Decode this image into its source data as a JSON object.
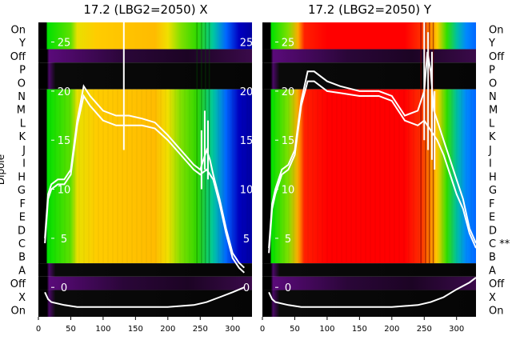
{
  "chart_data": [
    {
      "type": "heatmap",
      "panel": "left",
      "title": "17.2 (LBG2=2050) X",
      "ylabel": "Dipole",
      "xlim": [
        0,
        330
      ],
      "x_ticks": [
        0,
        50,
        100,
        150,
        200,
        250,
        300
      ],
      "y_categories_top_to_bottom": [
        "On",
        "Y",
        "Off",
        "P",
        "O",
        "N",
        "M",
        "L",
        "K",
        "J",
        "I",
        "H",
        "G",
        "F",
        "E",
        "D",
        "C",
        "B",
        "A",
        "Off",
        "X",
        "On"
      ],
      "overlay_ticks": [
        25,
        20,
        15,
        10,
        5,
        0
      ],
      "overlay_ylim": [
        -3,
        27
      ],
      "heat_stops": [
        {
          "x": 0,
          "color": "#000000"
        },
        {
          "x": 12,
          "color": "#000000"
        },
        {
          "x": 14,
          "color": "#00e000"
        },
        {
          "x": 50,
          "color": "#60e000"
        },
        {
          "x": 60,
          "color": "#e8e000"
        },
        {
          "x": 90,
          "color": "#ffcc00"
        },
        {
          "x": 180,
          "color": "#ffbb00"
        },
        {
          "x": 200,
          "color": "#f0e000"
        },
        {
          "x": 220,
          "color": "#80e000"
        },
        {
          "x": 245,
          "color": "#30d800"
        },
        {
          "x": 270,
          "color": "#00c8a0"
        },
        {
          "x": 290,
          "color": "#0066ff"
        },
        {
          "x": 310,
          "color": "#0000c0"
        },
        {
          "x": 330,
          "color": "#0000a0"
        }
      ],
      "profile_series": [
        {
          "x": [
            10,
            15,
            20,
            30,
            40,
            50,
            60,
            70,
            80,
            100,
            120,
            140,
            160,
            180,
            200,
            220,
            240,
            250,
            255,
            260,
            265,
            270,
            280,
            290,
            300,
            310,
            318
          ],
          "y": [
            5,
            9.5,
            10.5,
            11,
            11,
            12,
            17,
            20.5,
            19.5,
            18,
            17.5,
            17.5,
            17.2,
            16.8,
            15.5,
            14,
            12.5,
            12,
            13,
            14,
            13,
            11.5,
            9,
            6,
            3.5,
            2.5,
            2
          ]
        },
        {
          "x": [
            10,
            15,
            20,
            30,
            40,
            50,
            60,
            70,
            80,
            100,
            120,
            140,
            160,
            180,
            200,
            220,
            240,
            250,
            260,
            270,
            280,
            290,
            300,
            310,
            318
          ],
          "y": [
            4.5,
            9,
            10,
            10.5,
            10.5,
            11.5,
            16.5,
            19.5,
            18.5,
            17,
            16.5,
            16.5,
            16.5,
            16.2,
            15,
            13.5,
            12,
            11.5,
            12,
            11,
            8.5,
            5.5,
            3,
            2,
            1.5
          ]
        },
        {
          "x": [
            10,
            15,
            20,
            40,
            60,
            80,
            120,
            160,
            200,
            240,
            260,
            280,
            300,
            318
          ],
          "y": [
            -0.5,
            -1.2,
            -1.5,
            -1.8,
            -2,
            -2,
            -2,
            -2,
            -2,
            -1.8,
            -1.5,
            -1,
            -0.5,
            0
          ]
        }
      ]
    },
    {
      "type": "heatmap",
      "panel": "right",
      "title": "17.2 (LBG2=2050) Y",
      "xlim": [
        0,
        330
      ],
      "x_ticks": [
        0,
        50,
        100,
        150,
        200,
        250,
        300
      ],
      "y_categories_top_to_bottom": [
        "On",
        "Y",
        "Off",
        "P",
        "O",
        "N",
        "M",
        "L",
        "K",
        "J",
        "I",
        "H",
        "G",
        "F",
        "E",
        "D",
        "C **",
        "B",
        "A",
        "Off",
        "X",
        "On"
      ],
      "overlay_ticks": [
        25,
        20,
        15,
        10,
        5,
        0
      ],
      "overlay_ylim": [
        -3,
        27
      ],
      "heat_stops": [
        {
          "x": 0,
          "color": "#000000"
        },
        {
          "x": 12,
          "color": "#000000"
        },
        {
          "x": 14,
          "color": "#00e000"
        },
        {
          "x": 40,
          "color": "#80e000"
        },
        {
          "x": 55,
          "color": "#ffaa00"
        },
        {
          "x": 65,
          "color": "#ff2000"
        },
        {
          "x": 100,
          "color": "#ff0000"
        },
        {
          "x": 220,
          "color": "#ff0000"
        },
        {
          "x": 245,
          "color": "#ff3000"
        },
        {
          "x": 270,
          "color": "#ffcc00"
        },
        {
          "x": 285,
          "color": "#30e000"
        },
        {
          "x": 300,
          "color": "#00c0a0"
        },
        {
          "x": 315,
          "color": "#0088ff"
        },
        {
          "x": 330,
          "color": "#0066ff"
        }
      ],
      "profile_series": [
        {
          "x": [
            10,
            15,
            20,
            30,
            40,
            50,
            60,
            70,
            80,
            100,
            120,
            150,
            180,
            200,
            220,
            240,
            250,
            255,
            260,
            265,
            270,
            280,
            290,
            300,
            310,
            320,
            330
          ],
          "y": [
            4,
            8.5,
            10,
            12,
            12.5,
            14,
            19,
            22,
            22,
            21,
            20.5,
            20,
            20,
            19.5,
            17.5,
            18,
            20,
            24,
            22,
            18,
            17,
            15,
            13,
            11,
            9,
            6,
            4.5
          ]
        },
        {
          "x": [
            10,
            15,
            20,
            30,
            40,
            50,
            60,
            70,
            80,
            100,
            120,
            150,
            180,
            200,
            220,
            240,
            250,
            260,
            270,
            280,
            290,
            300,
            310,
            320,
            330
          ],
          "y": [
            3.5,
            8,
            9.5,
            11.5,
            12,
            13.5,
            18.5,
            21,
            21,
            20,
            19.8,
            19.5,
            19.5,
            19,
            17,
            16.5,
            17,
            16,
            15,
            13.5,
            11.5,
            9.5,
            8,
            5.5,
            4
          ]
        },
        {
          "x": [
            10,
            15,
            20,
            40,
            60,
            80,
            120,
            160,
            200,
            240,
            260,
            280,
            300,
            320,
            330
          ],
          "y": [
            -0.5,
            -1.2,
            -1.5,
            -1.8,
            -2,
            -2,
            -2,
            -2,
            -2,
            -1.8,
            -1.5,
            -1,
            -0.2,
            0.5,
            1
          ]
        }
      ]
    }
  ]
}
